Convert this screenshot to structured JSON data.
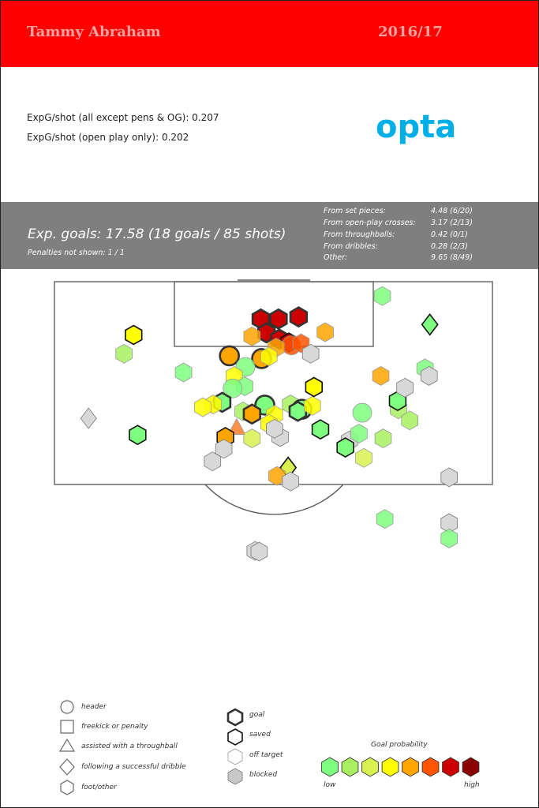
{
  "header": {
    "player": "Tammy Abraham",
    "season": "2016/17"
  },
  "stats": {
    "line1": "ExpG/shot (all except pens & OG): 0.207",
    "line2": "ExpG/shot (open play only): 0.202"
  },
  "logo": "opta",
  "summary": {
    "xg_line": "Exp. goals: 17.58 (18 goals / 85 shots)",
    "pens_line": "Penalties not shown: 1 / 1",
    "breakdown": [
      {
        "label": "From set pieces:",
        "value": "4.48 (6/20)"
      },
      {
        "label": "From open-play crosses:",
        "value": "3.17 (2/13)"
      },
      {
        "label": "From throughballs:",
        "value": "0.42 (0/1)"
      },
      {
        "label": "From dribbles:",
        "value": "0.28 (2/3)"
      },
      {
        "label": "Other:",
        "value": "9.65 (8/49)"
      }
    ]
  },
  "legend": {
    "shape_labels": [
      "header",
      "freekick or penalty",
      "assisted with a throughball",
      "following a successful dribble",
      "foot/other"
    ],
    "outcome_labels": [
      "goal",
      "saved",
      "off target",
      "blocked"
    ],
    "prob_title": "Goal probability",
    "prob_low": "low",
    "prob_high": "high",
    "prob_colors": [
      "#7fff7f",
      "#a8f060",
      "#d8f050",
      "#ffff00",
      "#ffa500",
      "#ff5500",
      "#cc0000",
      "#8b0000"
    ]
  },
  "chart_data": {
    "type": "scatter",
    "title": "",
    "xlabel": "",
    "ylabel": "",
    "coords": "shot location in pitch metres: x = across pitch from left touchline, y = distance from goal line",
    "xlim": [
      0,
      68
    ],
    "ylim": [
      0,
      40
    ],
    "outcome_styles": {
      "goal": {
        "stroke": "#333",
        "width": 2.6
      },
      "saved": {
        "stroke": "#111",
        "width": 1.6
      },
      "off": {
        "stroke": "#999",
        "width": 0.8
      },
      "blocked": {
        "stroke": "#777",
        "width": 0.8
      }
    },
    "points": [
      {
        "x": 32.4,
        "y": 5.6,
        "shape": "hex",
        "color": "#cc0000",
        "outcome": "goal"
      },
      {
        "x": 34.6,
        "y": 5.6,
        "shape": "hex",
        "color": "#cc0000",
        "outcome": "goal"
      },
      {
        "x": 37.1,
        "y": 5.3,
        "shape": "hex",
        "color": "#cc0000",
        "outcome": "goal"
      },
      {
        "x": 33.1,
        "y": 7.6,
        "shape": "hex",
        "color": "#cc0000",
        "outcome": "goal"
      },
      {
        "x": 34.7,
        "y": 8.5,
        "shape": "hex",
        "color": "#cc0000",
        "outcome": "goal"
      },
      {
        "x": 35.9,
        "y": 9.0,
        "shape": "hex",
        "color": "#cc0000",
        "outcome": "saved"
      },
      {
        "x": 36.2,
        "y": 9.4,
        "shape": "circle",
        "color": "#ff5500",
        "outcome": "off"
      },
      {
        "x": 37.4,
        "y": 9.1,
        "shape": "hex",
        "color": "#ff5500",
        "outcome": "off"
      },
      {
        "x": 34.3,
        "y": 9.7,
        "shape": "hex",
        "color": "#ffa500",
        "outcome": "off"
      },
      {
        "x": 31.3,
        "y": 8.1,
        "shape": "hex",
        "color": "#ffa500",
        "outcome": "off"
      },
      {
        "x": 40.4,
        "y": 7.5,
        "shape": "hex",
        "color": "#ffa500",
        "outcome": "off"
      },
      {
        "x": 28.5,
        "y": 10.9,
        "shape": "circle",
        "color": "#ffa500",
        "outcome": "goal"
      },
      {
        "x": 32.5,
        "y": 11.3,
        "shape": "circle",
        "color": "#ffa500",
        "outcome": "goal"
      },
      {
        "x": 30.5,
        "y": 12.5,
        "shape": "circle",
        "color": "#7fff7f",
        "outcome": "off"
      },
      {
        "x": 33.4,
        "y": 11.0,
        "shape": "hex",
        "color": "#ffff00",
        "outcome": "off"
      },
      {
        "x": 38.6,
        "y": 10.6,
        "shape": "hex",
        "color": "#d8d8d8",
        "outcome": "blocked"
      },
      {
        "x": 16.6,
        "y": 7.9,
        "shape": "hex",
        "color": "#ffff00",
        "outcome": "saved"
      },
      {
        "x": 15.4,
        "y": 10.6,
        "shape": "hex",
        "color": "#a8f060",
        "outcome": "off"
      },
      {
        "x": 22.8,
        "y": 13.3,
        "shape": "hex",
        "color": "#7fff7f",
        "outcome": "off"
      },
      {
        "x": 29.1,
        "y": 13.8,
        "shape": "hex",
        "color": "#ffff00",
        "outcome": "off"
      },
      {
        "x": 30.4,
        "y": 15.3,
        "shape": "hex",
        "color": "#7fff7f",
        "outcome": "off"
      },
      {
        "x": 28.9,
        "y": 15.6,
        "shape": "circle",
        "color": "#7fff7f",
        "outcome": "off"
      },
      {
        "x": 27.6,
        "y": 17.6,
        "shape": "hex",
        "color": "#7fff7f",
        "outcome": "goal"
      },
      {
        "x": 26.5,
        "y": 17.9,
        "shape": "hex",
        "color": "#ffff00",
        "outcome": "off"
      },
      {
        "x": 25.2,
        "y": 18.3,
        "shape": "hex",
        "color": "#ffff00",
        "outcome": "off"
      },
      {
        "x": 32.9,
        "y": 18.0,
        "shape": "circle",
        "color": "#7fff7f",
        "outcome": "goal"
      },
      {
        "x": 30.2,
        "y": 18.9,
        "shape": "hex",
        "color": "#a8f060",
        "outcome": "off"
      },
      {
        "x": 31.3,
        "y": 19.3,
        "shape": "hex",
        "color": "#ffa500",
        "outcome": "goal"
      },
      {
        "x": 34.1,
        "y": 19.4,
        "shape": "hex",
        "color": "#ffff00",
        "outcome": "off"
      },
      {
        "x": 33.4,
        "y": 20.7,
        "shape": "hex",
        "color": "#ffff00",
        "outcome": "off"
      },
      {
        "x": 36.1,
        "y": 17.9,
        "shape": "hex",
        "color": "#a8f060",
        "outcome": "off"
      },
      {
        "x": 37.5,
        "y": 18.6,
        "shape": "circle",
        "color": "#7fff7f",
        "outcome": "goal"
      },
      {
        "x": 37.0,
        "y": 18.9,
        "shape": "hex",
        "color": "#7fff7f",
        "outcome": "goal"
      },
      {
        "x": 38.8,
        "y": 18.1,
        "shape": "hex",
        "color": "#ffff00",
        "outcome": "off"
      },
      {
        "x": 39.0,
        "y": 15.4,
        "shape": "hex",
        "color": "#ffff00",
        "outcome": "saved"
      },
      {
        "x": 39.8,
        "y": 21.5,
        "shape": "hex",
        "color": "#7fff7f",
        "outcome": "saved"
      },
      {
        "x": 29.4,
        "y": 21.2,
        "shape": "triangle",
        "color": "#ff7f2a",
        "outcome": "off"
      },
      {
        "x": 28.0,
        "y": 22.6,
        "shape": "hex",
        "color": "#ffa500",
        "outcome": "saved"
      },
      {
        "x": 31.3,
        "y": 22.8,
        "shape": "hex",
        "color": "#d8f050",
        "outcome": "off"
      },
      {
        "x": 34.8,
        "y": 22.6,
        "shape": "hex",
        "color": "#d8d8d8",
        "outcome": "blocked"
      },
      {
        "x": 34.1,
        "y": 21.4,
        "shape": "hex",
        "color": "#d8d8d8",
        "outcome": "blocked"
      },
      {
        "x": 43.4,
        "y": 23.1,
        "shape": "hex",
        "color": "#d8d8d8",
        "outcome": "blocked"
      },
      {
        "x": 44.6,
        "y": 22.1,
        "shape": "hex",
        "color": "#7fff7f",
        "outcome": "off"
      },
      {
        "x": 45.0,
        "y": 19.1,
        "shape": "circle",
        "color": "#7fff7f",
        "outcome": "off"
      },
      {
        "x": 47.6,
        "y": 22.8,
        "shape": "hex",
        "color": "#a8f060",
        "outcome": "off"
      },
      {
        "x": 42.9,
        "y": 24.1,
        "shape": "hex",
        "color": "#7fff7f",
        "outcome": "saved"
      },
      {
        "x": 45.2,
        "y": 25.6,
        "shape": "hex",
        "color": "#d8f050",
        "outcome": "off"
      },
      {
        "x": 49.5,
        "y": 18.6,
        "shape": "hex",
        "color": "#a8f060",
        "outcome": "off"
      },
      {
        "x": 50.9,
        "y": 20.2,
        "shape": "hex",
        "color": "#a8f060",
        "outcome": "off"
      },
      {
        "x": 49.4,
        "y": 17.4,
        "shape": "hex",
        "color": "#7fff7f",
        "outcome": "saved"
      },
      {
        "x": 50.3,
        "y": 15.5,
        "shape": "hex",
        "color": "#d8d8d8",
        "outcome": "blocked"
      },
      {
        "x": 47.3,
        "y": 13.8,
        "shape": "hex",
        "color": "#ffa500",
        "outcome": "off"
      },
      {
        "x": 52.8,
        "y": 12.7,
        "shape": "hex",
        "color": "#7fff7f",
        "outcome": "off"
      },
      {
        "x": 53.3,
        "y": 13.8,
        "shape": "hex",
        "color": "#d8d8d8",
        "outcome": "blocked"
      },
      {
        "x": 47.5,
        "y": 2.3,
        "shape": "hex",
        "color": "#7fff7f",
        "outcome": "off"
      },
      {
        "x": 53.4,
        "y": 6.4,
        "shape": "diamond",
        "color": "#7fff7f",
        "outcome": "saved"
      },
      {
        "x": 11.0,
        "y": 19.9,
        "shape": "diamond",
        "color": "#d8d8d8",
        "outcome": "blocked"
      },
      {
        "x": 17.1,
        "y": 22.3,
        "shape": "hex",
        "color": "#7fff7f",
        "outcome": "saved"
      },
      {
        "x": 27.8,
        "y": 24.3,
        "shape": "hex",
        "color": "#d8d8d8",
        "outcome": "blocked"
      },
      {
        "x": 26.4,
        "y": 26.1,
        "shape": "hex",
        "color": "#d8d8d8",
        "outcome": "blocked"
      },
      {
        "x": 35.8,
        "y": 27.0,
        "shape": "diamond",
        "color": "#d8f050",
        "outcome": "saved"
      },
      {
        "x": 34.4,
        "y": 28.2,
        "shape": "hex",
        "color": "#ffa500",
        "outcome": "off"
      },
      {
        "x": 36.1,
        "y": 29.0,
        "shape": "hex",
        "color": "#d8d8d8",
        "outcome": "blocked"
      },
      {
        "x": 55.8,
        "y": 28.4,
        "shape": "hex",
        "color": "#d8d8d8",
        "outcome": "blocked"
      },
      {
        "x": 47.8,
        "y": 34.4,
        "shape": "hex",
        "color": "#7fff7f",
        "outcome": "off"
      },
      {
        "x": 55.8,
        "y": 35.0,
        "shape": "hex",
        "color": "#d8d8d8",
        "outcome": "blocked"
      },
      {
        "x": 55.8,
        "y": 37.2,
        "shape": "hex",
        "color": "#7fff7f",
        "outcome": "off"
      },
      {
        "x": 31.7,
        "y": 39.0,
        "shape": "hex",
        "color": "#d8d8d8",
        "outcome": "blocked"
      },
      {
        "x": 32.2,
        "y": 39.1,
        "shape": "hex",
        "color": "#d8d8d8",
        "outcome": "blocked"
      }
    ]
  }
}
